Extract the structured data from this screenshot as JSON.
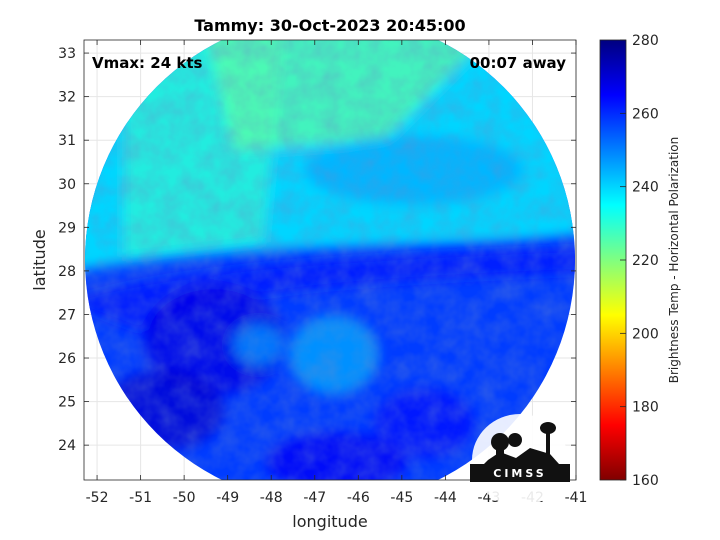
{
  "chart_data": {
    "type": "heatmap",
    "title": "Tammy: 30-Oct-2023 20:45:00",
    "xlabel": "longitude",
    "ylabel": "latitude",
    "xlim": [
      -52.3,
      -41
    ],
    "ylim": [
      23.2,
      33.3
    ],
    "xticks": [
      -52,
      -51,
      -50,
      -49,
      -48,
      -47,
      -46,
      -45,
      -44,
      -43,
      -42,
      -41
    ],
    "yticks": [
      24,
      25,
      26,
      27,
      28,
      29,
      30,
      31,
      32,
      33
    ],
    "grid": true,
    "annotations": {
      "left": "Vmax: 24 kts",
      "right": "00:07 away"
    },
    "colorbar": {
      "label": "Brightness Temp - Horizontal Polarization",
      "range": [
        160,
        280
      ],
      "ticks": [
        160,
        180,
        200,
        220,
        240,
        260,
        280
      ],
      "colormap": "jet",
      "position": "right"
    },
    "swath_center": {
      "lon": -46.65,
      "lat": 28.25
    },
    "features": {
      "storm_center": {
        "lon": -48.4,
        "lat": 26.3
      },
      "cold_band_lat": 28.2,
      "northern_field_value": 228,
      "southern_field_value": 258
    },
    "logo": "CIMSS"
  },
  "colors": {
    "colormap_stops": [
      "#800000",
      "#ff0000",
      "#ff8000",
      "#ffff00",
      "#80ff80",
      "#00ffff",
      "#0080ff",
      "#0000ff",
      "#000080"
    ],
    "grid": "#e6e6e6",
    "axis": "#262626"
  }
}
